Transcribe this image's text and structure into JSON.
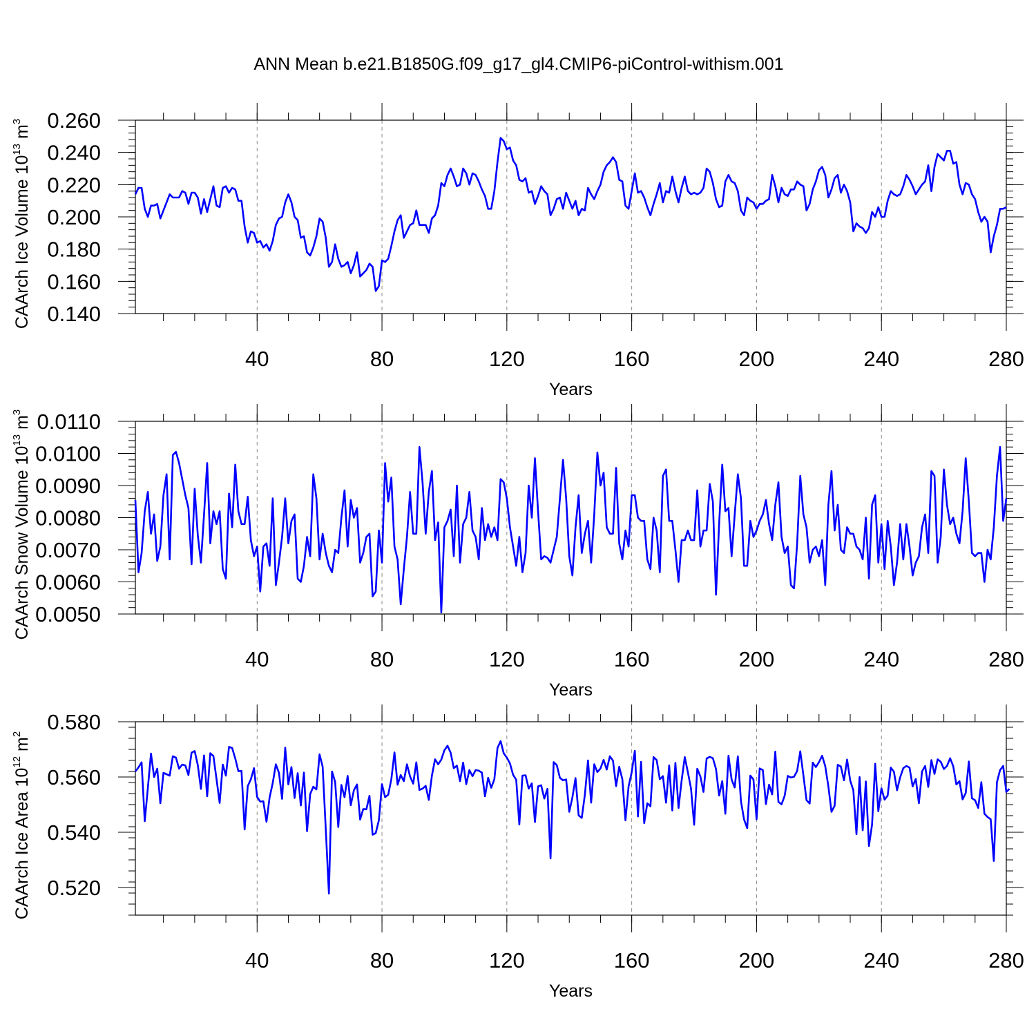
{
  "title": "ANN Mean b.e21.B1850G.f09_g17_gl4.CMIP6-piControl-withism.001",
  "line_color": "#0000ff",
  "chart_data": [
    {
      "type": "line",
      "ylabel_main": "CAArch Ice Volume 10",
      "ylabel_exp": "13",
      "ylabel_unit": " m",
      "ylabel_unit_exp": "3",
      "xlabel": "Years",
      "xlim": [
        1,
        280
      ],
      "ylim": [
        0.14,
        0.26
      ],
      "xticks": [
        40,
        80,
        120,
        160,
        200,
        240,
        280
      ],
      "xtick_labels": [
        "40",
        "80",
        "120",
        "160",
        "200",
        "240",
        "280"
      ],
      "yticks": [
        0.14,
        0.16,
        0.18,
        0.2,
        0.22,
        0.24,
        0.26
      ],
      "ytick_labels": [
        "0.140",
        "0.160",
        "0.180",
        "0.200",
        "0.220",
        "0.240",
        "0.260"
      ],
      "y_minor_step": 0.004,
      "x_minor_step": 10,
      "x_start": 1,
      "values": [
        0.214,
        0.218,
        0.218,
        0.205,
        0.2,
        0.207,
        0.207,
        0.208,
        0.199,
        0.204,
        0.209,
        0.214,
        0.212,
        0.212,
        0.212,
        0.216,
        0.215,
        0.208,
        0.215,
        0.215,
        0.212,
        0.202,
        0.211,
        0.203,
        0.211,
        0.219,
        0.207,
        0.206,
        0.218,
        0.219,
        0.215,
        0.218,
        0.217,
        0.21,
        0.21,
        0.194,
        0.184,
        0.191,
        0.19,
        0.184,
        0.185,
        0.181,
        0.183,
        0.179,
        0.185,
        0.195,
        0.199,
        0.2,
        0.209,
        0.214,
        0.209,
        0.2,
        0.198,
        0.187,
        0.188,
        0.178,
        0.176,
        0.181,
        0.188,
        0.199,
        0.197,
        0.187,
        0.169,
        0.172,
        0.183,
        0.174,
        0.169,
        0.17,
        0.172,
        0.165,
        0.17,
        0.178,
        0.163,
        0.165,
        0.167,
        0.171,
        0.169,
        0.154,
        0.157,
        0.173,
        0.172,
        0.174,
        0.182,
        0.191,
        0.198,
        0.201,
        0.187,
        0.191,
        0.195,
        0.196,
        0.204,
        0.195,
        0.195,
        0.195,
        0.19,
        0.199,
        0.201,
        0.207,
        0.221,
        0.219,
        0.226,
        0.23,
        0.225,
        0.219,
        0.22,
        0.23,
        0.227,
        0.22,
        0.227,
        0.226,
        0.222,
        0.217,
        0.213,
        0.205,
        0.205,
        0.216,
        0.234,
        0.249,
        0.247,
        0.242,
        0.243,
        0.235,
        0.232,
        0.223,
        0.222,
        0.224,
        0.215,
        0.216,
        0.208,
        0.213,
        0.219,
        0.216,
        0.214,
        0.201,
        0.205,
        0.211,
        0.212,
        0.205,
        0.215,
        0.21,
        0.205,
        0.21,
        0.201,
        0.205,
        0.204,
        0.218,
        0.214,
        0.211,
        0.216,
        0.22,
        0.228,
        0.232,
        0.234,
        0.237,
        0.234,
        0.223,
        0.222,
        0.207,
        0.205,
        0.216,
        0.227,
        0.215,
        0.216,
        0.212,
        0.206,
        0.201,
        0.208,
        0.214,
        0.221,
        0.209,
        0.216,
        0.215,
        0.225,
        0.216,
        0.209,
        0.218,
        0.225,
        0.216,
        0.214,
        0.215,
        0.214,
        0.215,
        0.218,
        0.23,
        0.228,
        0.221,
        0.211,
        0.206,
        0.207,
        0.222,
        0.226,
        0.222,
        0.221,
        0.216,
        0.204,
        0.201,
        0.212,
        0.21,
        0.209,
        0.205,
        0.208,
        0.208,
        0.21,
        0.211,
        0.226,
        0.219,
        0.209,
        0.218,
        0.214,
        0.213,
        0.217,
        0.217,
        0.222,
        0.22,
        0.219,
        0.204,
        0.208,
        0.217,
        0.222,
        0.229,
        0.231,
        0.226,
        0.212,
        0.217,
        0.224,
        0.226,
        0.215,
        0.22,
        0.216,
        0.209,
        0.191,
        0.196,
        0.194,
        0.193,
        0.19,
        0.193,
        0.203,
        0.2,
        0.206,
        0.2,
        0.2,
        0.21,
        0.216,
        0.214,
        0.213,
        0.214,
        0.219,
        0.226,
        0.223,
        0.219,
        0.214,
        0.217,
        0.22,
        0.222,
        0.232,
        0.216,
        0.231,
        0.239,
        0.237,
        0.235,
        0.241,
        0.241,
        0.233,
        0.234,
        0.22,
        0.214,
        0.221,
        0.22,
        0.214,
        0.211,
        0.203,
        0.197,
        0.2,
        0.197,
        0.178,
        0.188,
        0.195,
        0.205,
        0.205,
        0.206
      ]
    },
    {
      "type": "line",
      "ylabel_main": "CAArch Snow Volume 10",
      "ylabel_exp": "13",
      "ylabel_unit": " m",
      "ylabel_unit_exp": "3",
      "xlabel": "Years",
      "xlim": [
        1,
        280
      ],
      "ylim": [
        0.005,
        0.011
      ],
      "xticks": [
        40,
        80,
        120,
        160,
        200,
        240,
        280
      ],
      "xtick_labels": [
        "40",
        "80",
        "120",
        "160",
        "200",
        "240",
        "280"
      ],
      "yticks": [
        0.005,
        0.006,
        0.007,
        0.008,
        0.009,
        0.01,
        0.011
      ],
      "ytick_labels": [
        "0.0050",
        "0.0060",
        "0.0070",
        "0.0080",
        "0.0090",
        "0.0100",
        "0.0110"
      ],
      "y_minor_step": 0.0002,
      "x_minor_step": 10,
      "x_start": 1,
      "values": [
        0.00855,
        0.0063,
        0.0069,
        0.0082,
        0.0088,
        0.0075,
        0.0081,
        0.00665,
        0.0071,
        0.0087,
        0.00935,
        0.0067,
        0.00995,
        0.01005,
        0.0097,
        0.0092,
        0.0087,
        0.0083,
        0.00655,
        0.0089,
        0.00745,
        0.0066,
        0.0081,
        0.0097,
        0.0072,
        0.0082,
        0.0078,
        0.0082,
        0.0064,
        0.0061,
        0.00875,
        0.0077,
        0.00965,
        0.0082,
        0.0078,
        0.0078,
        0.00865,
        0.0073,
        0.0068,
        0.0071,
        0.0057,
        0.0071,
        0.0072,
        0.0065,
        0.0086,
        0.0059,
        0.0066,
        0.0074,
        0.0086,
        0.0072,
        0.0079,
        0.0081,
        0.0061,
        0.006,
        0.0065,
        0.0074,
        0.0068,
        0.00935,
        0.0086,
        0.0067,
        0.0075,
        0.0069,
        0.0065,
        0.0063,
        0.007,
        0.0069,
        0.008,
        0.00885,
        0.0071,
        0.00855,
        0.008,
        0.0083,
        0.0066,
        0.0069,
        0.0074,
        0.0075,
        0.00555,
        0.0057,
        0.0076,
        0.0066,
        0.0097,
        0.0085,
        0.00925,
        0.0071,
        0.0067,
        0.0053,
        0.0064,
        0.0074,
        0.0088,
        0.0075,
        0.0075,
        0.0102,
        0.0091,
        0.0075,
        0.0088,
        0.00945,
        0.0073,
        0.00785,
        0.00505,
        0.0077,
        0.0079,
        0.00825,
        0.0068,
        0.009,
        0.0066,
        0.0078,
        0.008,
        0.0088,
        0.0076,
        0.0074,
        0.0067,
        0.0083,
        0.0073,
        0.0078,
        0.0074,
        0.0077,
        0.0073,
        0.0092,
        0.0091,
        0.0086,
        0.0077,
        0.0071,
        0.0065,
        0.0074,
        0.0063,
        0.0069,
        0.009,
        0.008,
        0.00985,
        0.0082,
        0.0067,
        0.0068,
        0.00675,
        0.0066,
        0.007,
        0.0074,
        0.0086,
        0.0098,
        0.0086,
        0.0068,
        0.0062,
        0.0077,
        0.0087,
        0.0069,
        0.0075,
        0.0079,
        0.0066,
        0.0081,
        0.01003,
        0.009,
        0.0094,
        0.0077,
        0.0075,
        0.0075,
        0.00955,
        0.0072,
        0.0067,
        0.0076,
        0.0071,
        0.0087,
        0.0087,
        0.008,
        0.0079,
        0.0079,
        0.0067,
        0.0064,
        0.008,
        0.0076,
        0.0063,
        0.0093,
        0.0095,
        0.0079,
        0.0079,
        0.007,
        0.006,
        0.0073,
        0.0073,
        0.0076,
        0.0073,
        0.0073,
        0.00885,
        0.0071,
        0.0076,
        0.0076,
        0.00905,
        0.0085,
        0.0056,
        0.0078,
        0.00965,
        0.0082,
        0.0083,
        0.0068,
        0.0081,
        0.00935,
        0.0086,
        0.0065,
        0.0065,
        0.0079,
        0.0074,
        0.0076,
        0.0079,
        0.0081,
        0.00855,
        0.0078,
        0.0073,
        0.0084,
        0.0091,
        0.0074,
        0.0069,
        0.0071,
        0.0059,
        0.0058,
        0.0072,
        0.0093,
        0.0081,
        0.0077,
        0.0066,
        0.007,
        0.0071,
        0.0068,
        0.0073,
        0.0059,
        0.0084,
        0.00945,
        0.0076,
        0.0084,
        0.007,
        0.0069,
        0.0077,
        0.0075,
        0.0075,
        0.0071,
        0.007,
        0.0067,
        0.008,
        0.0061,
        0.0084,
        0.0087,
        0.0066,
        0.0078,
        0.0064,
        0.0079,
        0.0071,
        0.0059,
        0.0066,
        0.0078,
        0.0067,
        0.0078,
        0.0071,
        0.0062,
        0.0066,
        0.0068,
        0.0077,
        0.0081,
        0.0069,
        0.00945,
        0.0093,
        0.0066,
        0.0074,
        0.0095,
        0.0084,
        0.0078,
        0.008,
        0.0075,
        0.0072,
        0.0082,
        0.00985,
        0.0085,
        0.0069,
        0.0068,
        0.0069,
        0.0069,
        0.006,
        0.007,
        0.0067,
        0.0077,
        0.0093,
        0.0102,
        0.0079,
        0.0086
      ]
    },
    {
      "type": "line",
      "ylabel_main": "CAArch Ice Area 10",
      "ylabel_exp": "12",
      "ylabel_unit": " m",
      "ylabel_unit_exp": "2",
      "xlabel": "Years",
      "xlim": [
        1,
        280
      ],
      "ylim": [
        0.51,
        0.58
      ],
      "xticks": [
        40,
        80,
        120,
        160,
        200,
        240,
        280
      ],
      "xtick_labels": [
        "40",
        "80",
        "120",
        "160",
        "200",
        "240",
        "280"
      ],
      "yticks": [
        0.52,
        0.54,
        0.56,
        0.58
      ],
      "ytick_labels": [
        "0.520",
        "0.540",
        "0.560",
        "0.580"
      ],
      "y_minor_step": 0.004,
      "x_minor_step": 10,
      "x_start": 1,
      "values": [
        0.562,
        0.5635,
        0.5653,
        0.544,
        0.556,
        0.5685,
        0.56,
        0.563,
        0.5505,
        0.5615,
        0.561,
        0.5605,
        0.5675,
        0.567,
        0.563,
        0.5645,
        0.5642,
        0.5607,
        0.5688,
        0.5694,
        0.5643,
        0.5557,
        0.5678,
        0.553,
        0.5686,
        0.5676,
        0.5592,
        0.5506,
        0.5645,
        0.5605,
        0.5709,
        0.5705,
        0.5667,
        0.5621,
        0.5622,
        0.541,
        0.5567,
        0.5592,
        0.5632,
        0.5528,
        0.5511,
        0.5512,
        0.5438,
        0.5526,
        0.5578,
        0.5646,
        0.5615,
        0.5521,
        0.5706,
        0.5573,
        0.5636,
        0.5524,
        0.5614,
        0.5497,
        0.5616,
        0.5404,
        0.5538,
        0.5565,
        0.5555,
        0.5682,
        0.5637,
        0.541,
        0.5178,
        0.562,
        0.5582,
        0.5419,
        0.5571,
        0.5527,
        0.5604,
        0.5498,
        0.5552,
        0.5573,
        0.5446,
        0.5484,
        0.5483,
        0.5532,
        0.5391,
        0.5397,
        0.5443,
        0.5574,
        0.5527,
        0.5536,
        0.5592,
        0.5689,
        0.5572,
        0.5607,
        0.5585,
        0.5646,
        0.5602,
        0.5576,
        0.5653,
        0.5553,
        0.5558,
        0.5568,
        0.5517,
        0.5605,
        0.5664,
        0.5646,
        0.5663,
        0.5697,
        0.5713,
        0.5688,
        0.5632,
        0.5641,
        0.5585,
        0.5652,
        0.5574,
        0.5625,
        0.5603,
        0.5625,
        0.5623,
        0.5616,
        0.553,
        0.5597,
        0.5561,
        0.5592,
        0.5705,
        0.573,
        0.5686,
        0.567,
        0.5649,
        0.5608,
        0.559,
        0.5428,
        0.5605,
        0.5606,
        0.5558,
        0.5577,
        0.5437,
        0.5566,
        0.557,
        0.5522,
        0.5557,
        0.5305,
        0.5654,
        0.5643,
        0.5597,
        0.5588,
        0.5591,
        0.5474,
        0.5526,
        0.5596,
        0.5461,
        0.5452,
        0.5536,
        0.566,
        0.5507,
        0.5646,
        0.5618,
        0.5631,
        0.5662,
        0.5627,
        0.5675,
        0.5659,
        0.5567,
        0.5637,
        0.5592,
        0.5443,
        0.5566,
        0.5617,
        0.5695,
        0.5457,
        0.5655,
        0.5433,
        0.5505,
        0.5494,
        0.5672,
        0.5661,
        0.5592,
        0.5603,
        0.5507,
        0.5642,
        0.5479,
        0.5651,
        0.5488,
        0.5588,
        0.5672,
        0.5617,
        0.5558,
        0.5427,
        0.563,
        0.5602,
        0.5546,
        0.5667,
        0.5673,
        0.5668,
        0.5629,
        0.5533,
        0.5585,
        0.5467,
        0.5677,
        0.5591,
        0.5562,
        0.5675,
        0.5512,
        0.5446,
        0.5415,
        0.5605,
        0.5591,
        0.5447,
        0.5631,
        0.5625,
        0.5502,
        0.5572,
        0.5537,
        0.5692,
        0.551,
        0.5501,
        0.5532,
        0.5604,
        0.5598,
        0.5601,
        0.5622,
        0.5693,
        0.5606,
        0.5516,
        0.5504,
        0.5652,
        0.5636,
        0.5654,
        0.5677,
        0.5639,
        0.5566,
        0.5474,
        0.5496,
        0.5644,
        0.5638,
        0.5588,
        0.5663,
        0.5587,
        0.5552,
        0.5393,
        0.56,
        0.5407,
        0.5584,
        0.535,
        0.5428,
        0.5648,
        0.5476,
        0.5559,
        0.5518,
        0.5533,
        0.5634,
        0.5619,
        0.5552,
        0.5599,
        0.5632,
        0.564,
        0.5634,
        0.5566,
        0.5593,
        0.5505,
        0.562,
        0.564,
        0.5564,
        0.5661,
        0.5611,
        0.5664,
        0.5655,
        0.5629,
        0.564,
        0.5668,
        0.5639,
        0.5573,
        0.5585,
        0.5519,
        0.5542,
        0.5656,
        0.5523,
        0.5516,
        0.5488,
        0.5581,
        0.5467,
        0.5455,
        0.5447,
        0.5296,
        0.5581,
        0.5625,
        0.564,
        0.5546,
        0.5557
      ]
    }
  ]
}
